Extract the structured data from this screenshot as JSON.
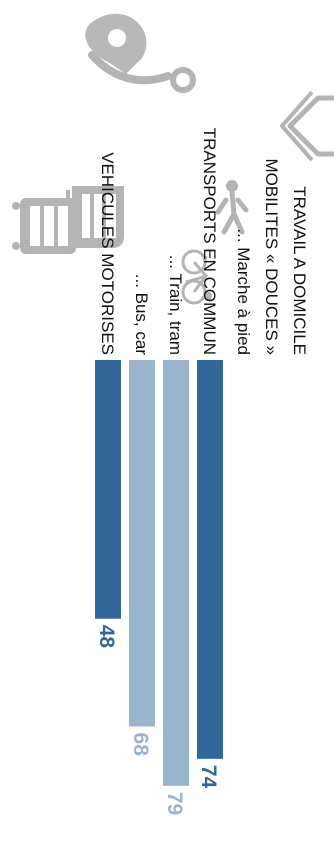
{
  "chart_data": {
    "type": "bar",
    "orientation": "horizontal",
    "rotated": "90deg-clockwise",
    "title": "",
    "xlabel": "",
    "ylabel": "",
    "categories": [
      "TRAVAIL A DOMICILE",
      "MOBILITES « DOUCES »",
      "... Marche à pied",
      "TRANSPORTS EN COMMUN",
      "... Train, tram",
      "... Bus, car",
      "VEHICULES MOTORISES"
    ],
    "values": [
      null,
      null,
      null,
      74,
      79,
      68,
      48
    ],
    "value_labels": [
      "",
      "",
      "",
      "74",
      "79",
      "68",
      "48"
    ],
    "xlim": [
      0,
      85
    ],
    "grid": false,
    "legend": "none",
    "colors": {
      "main": "#336699",
      "sub": "#9bb4cd",
      "main_text": "#336699",
      "sub_text": "#9bb4cd",
      "icon": "#b4b4b4"
    },
    "icons": [
      "house-icon",
      "pedestrian-icon",
      "bicycle-icon",
      "train-icon",
      "bus-icon"
    ],
    "logo": "map-pin-logo"
  }
}
